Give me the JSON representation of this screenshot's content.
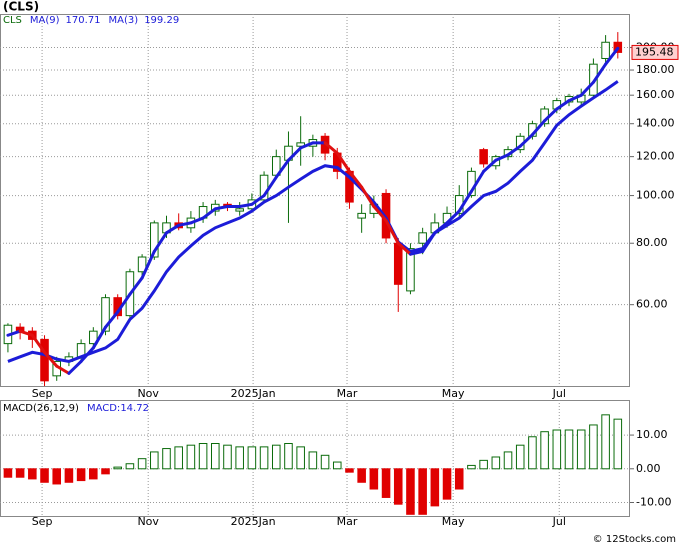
{
  "chart_data": {
    "type": "candlestick",
    "title": "(CLS)",
    "symbol": "CLS",
    "ma_series": [
      {
        "name": "MA(9)",
        "last": 170.71,
        "color": "#1c1cd8",
        "values": [
          46,
          47,
          48,
          47.5,
          46.5,
          46,
          47,
          48,
          49,
          51,
          56,
          59,
          64,
          70,
          75,
          79,
          83,
          86,
          88,
          90,
          93,
          97,
          100,
          104,
          108,
          112,
          115,
          114,
          109,
          103,
          97,
          90,
          80.5,
          77,
          78,
          84,
          87,
          90,
          95,
          100,
          102,
          106,
          112,
          118,
          128,
          139,
          146,
          152,
          158,
          164,
          170.71
        ]
      },
      {
        "name": "MA(3)",
        "last": 199.29,
        "color": "#1c1cd8",
        "down_color": "#e01010",
        "values": [
          52,
          53,
          52,
          48,
          45,
          43.5,
          46,
          49,
          54,
          58,
          63,
          68,
          77,
          84,
          87,
          88,
          90,
          94,
          95,
          95,
          96,
          100,
          109,
          118,
          125,
          128,
          128,
          122,
          112,
          104,
          95,
          89,
          80,
          76,
          77,
          84,
          88,
          93,
          102,
          112,
          118,
          121,
          126,
          133,
          142,
          150,
          156,
          160,
          170,
          185,
          199.29
        ]
      }
    ],
    "open": [
      50,
      54,
      53,
      51,
      43,
      46,
      47,
      50,
      53,
      62,
      57,
      70,
      75,
      84,
      88,
      86,
      90,
      93,
      96,
      93,
      94,
      98,
      110,
      118,
      126,
      126,
      132,
      122,
      112,
      90,
      92,
      101,
      80,
      64,
      80,
      84,
      88,
      92,
      100,
      124,
      115,
      120,
      124,
      132,
      140,
      150,
      155,
      155,
      160,
      190,
      205
    ],
    "high": [
      55,
      55,
      54,
      52,
      47,
      48,
      51,
      54,
      63,
      63,
      71,
      76,
      89,
      91,
      92,
      93,
      97,
      98,
      97,
      97,
      101,
      112,
      124,
      135,
      145,
      133,
      134,
      125,
      114,
      96,
      100,
      103,
      82,
      80,
      86,
      92,
      95,
      105,
      114,
      125,
      121,
      126,
      134,
      142,
      152,
      158,
      161,
      165,
      190,
      212,
      215
    ],
    "low": [
      48,
      51,
      49,
      41,
      42,
      45,
      46,
      49,
      52,
      56,
      56,
      68,
      74,
      82,
      85,
      84,
      88,
      91,
      93,
      91,
      93,
      97,
      108,
      88,
      115,
      120,
      118,
      108,
      94,
      84,
      90,
      80,
      58,
      63,
      76,
      83,
      86,
      90,
      99,
      114,
      113,
      118,
      122,
      130,
      138,
      147,
      152,
      152,
      158,
      185,
      190
    ],
    "close": [
      54.5,
      53,
      51,
      42,
      46,
      47,
      50,
      53,
      62,
      57,
      70,
      75,
      88,
      88,
      86,
      90,
      95,
      96,
      95,
      94,
      98,
      110,
      120,
      126,
      128,
      130,
      122,
      112,
      97,
      92,
      96,
      82,
      66,
      78,
      84,
      88,
      92,
      100,
      112,
      116,
      120,
      124,
      132,
      140,
      150,
      156,
      159,
      160,
      185,
      205,
      195.48
    ],
    "up_color": "#0b6b0b",
    "down_color": "#e00000",
    "last_price": 195.48,
    "log_scale": true,
    "xlim": [
      -0.65,
      51.0
    ],
    "xticks": [
      {
        "value": 2.8,
        "label": "Sep"
      },
      {
        "value": 11.5,
        "label": "Nov"
      },
      {
        "value": 20.1,
        "label": "2025Jan"
      },
      {
        "value": 27.8,
        "label": "Mar"
      },
      {
        "value": 36.5,
        "label": "May"
      },
      {
        "value": 45.2,
        "label": "Jul"
      }
    ],
    "ylim": [
      41,
      234
    ],
    "yticks": [
      {
        "value": 60,
        "label": "60.00"
      },
      {
        "value": 80,
        "label": "80.00"
      },
      {
        "value": 100,
        "label": "100.00"
      },
      {
        "value": 120,
        "label": "120.00"
      },
      {
        "value": 140,
        "label": "140.00"
      },
      {
        "value": 160,
        "label": "160.00"
      },
      {
        "value": 180,
        "label": "180.00"
      },
      {
        "value": 200,
        "label": "200.00"
      }
    ],
    "grid": true,
    "macd": {
      "title": "MACD(26,12,9)",
      "label": "MACD:",
      "last": 14.72,
      "pos_color": "#0b6b0b",
      "neg_color": "#e00000",
      "values": [
        -2.5,
        -2.5,
        -3,
        -4,
        -4.5,
        -4,
        -3.5,
        -3,
        -1.5,
        0.5,
        1.5,
        3,
        5,
        6,
        6.5,
        7,
        7.5,
        7.5,
        7,
        6.5,
        6.5,
        6.5,
        7,
        7.5,
        6.5,
        5,
        4,
        2,
        -1,
        -4,
        -6,
        -8.5,
        -10.5,
        -13.5,
        -13.5,
        -11,
        -9,
        -6,
        1,
        2.5,
        3.5,
        5,
        7,
        9.5,
        11,
        11.5,
        11.5,
        11.5,
        13,
        16,
        14.72
      ],
      "ylim": [
        -14,
        20.4
      ],
      "yticks": [
        {
          "value": 10,
          "label": "10.00"
        },
        {
          "value": 0,
          "label": "0.00"
        },
        {
          "value": -10,
          "label": "-10.00"
        }
      ]
    },
    "footer": "© 12Stocks.com"
  }
}
